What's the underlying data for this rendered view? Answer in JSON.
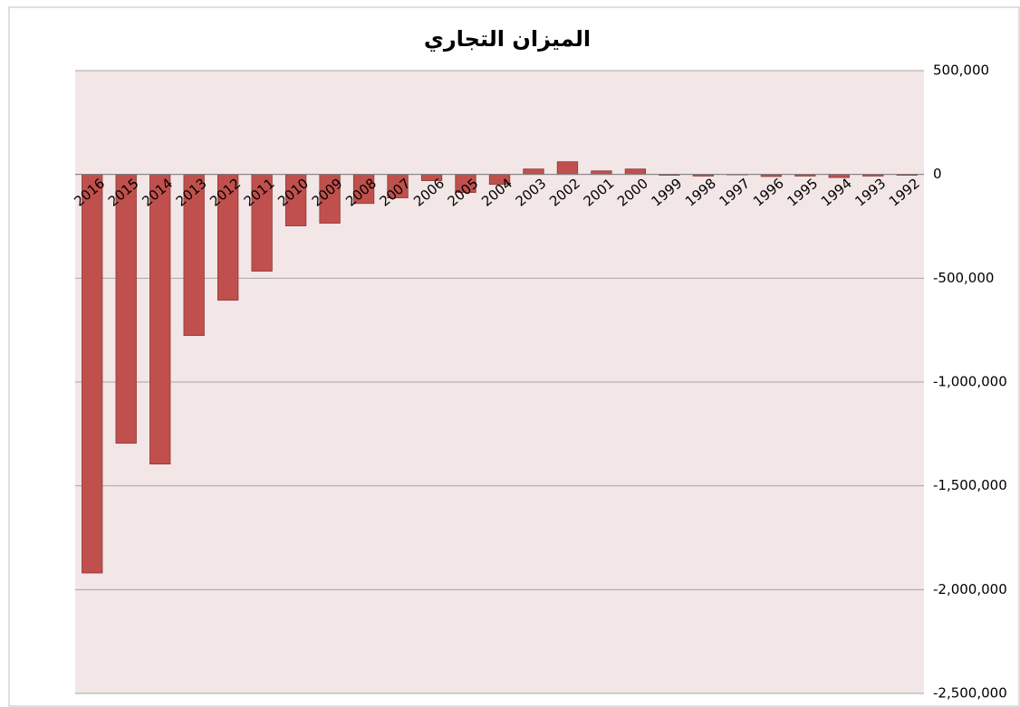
{
  "chart_data": {
    "type": "bar",
    "title": "الميزان التجاري",
    "categories": [
      "2016",
      "2015",
      "2014",
      "2013",
      "2012",
      "2011",
      "2010",
      "2009",
      "2008",
      "2007",
      "2006",
      "2005",
      "2004",
      "2003",
      "2002",
      "2001",
      "2000",
      "1999",
      "1998",
      "1997",
      "1996",
      "1995",
      "1994",
      "1993",
      "1992"
    ],
    "values": [
      -1920000,
      -1295000,
      -1395000,
      -776000,
      -606000,
      -466000,
      -248000,
      -235000,
      -140000,
      -113000,
      -30000,
      -87000,
      -48000,
      26000,
      61000,
      17000,
      26000,
      -4000,
      -8000,
      -2000,
      -10000,
      -8000,
      -15000,
      -8000,
      -4000
    ],
    "color": "#c0504d",
    "ylim": [
      -2500000,
      500000
    ],
    "yticks": [
      {
        "value": -2500000,
        "label": "-2,500,000"
      },
      {
        "value": -2000000,
        "label": "-2,000,000"
      },
      {
        "value": -1500000,
        "label": "-1,500,000"
      },
      {
        "value": -1000000,
        "label": "-1,000,000"
      },
      {
        "value": -500000,
        "label": "-500,000"
      },
      0,
      {
        "value": 500000,
        "label": "500,000"
      }
    ],
    "grid": true
  }
}
